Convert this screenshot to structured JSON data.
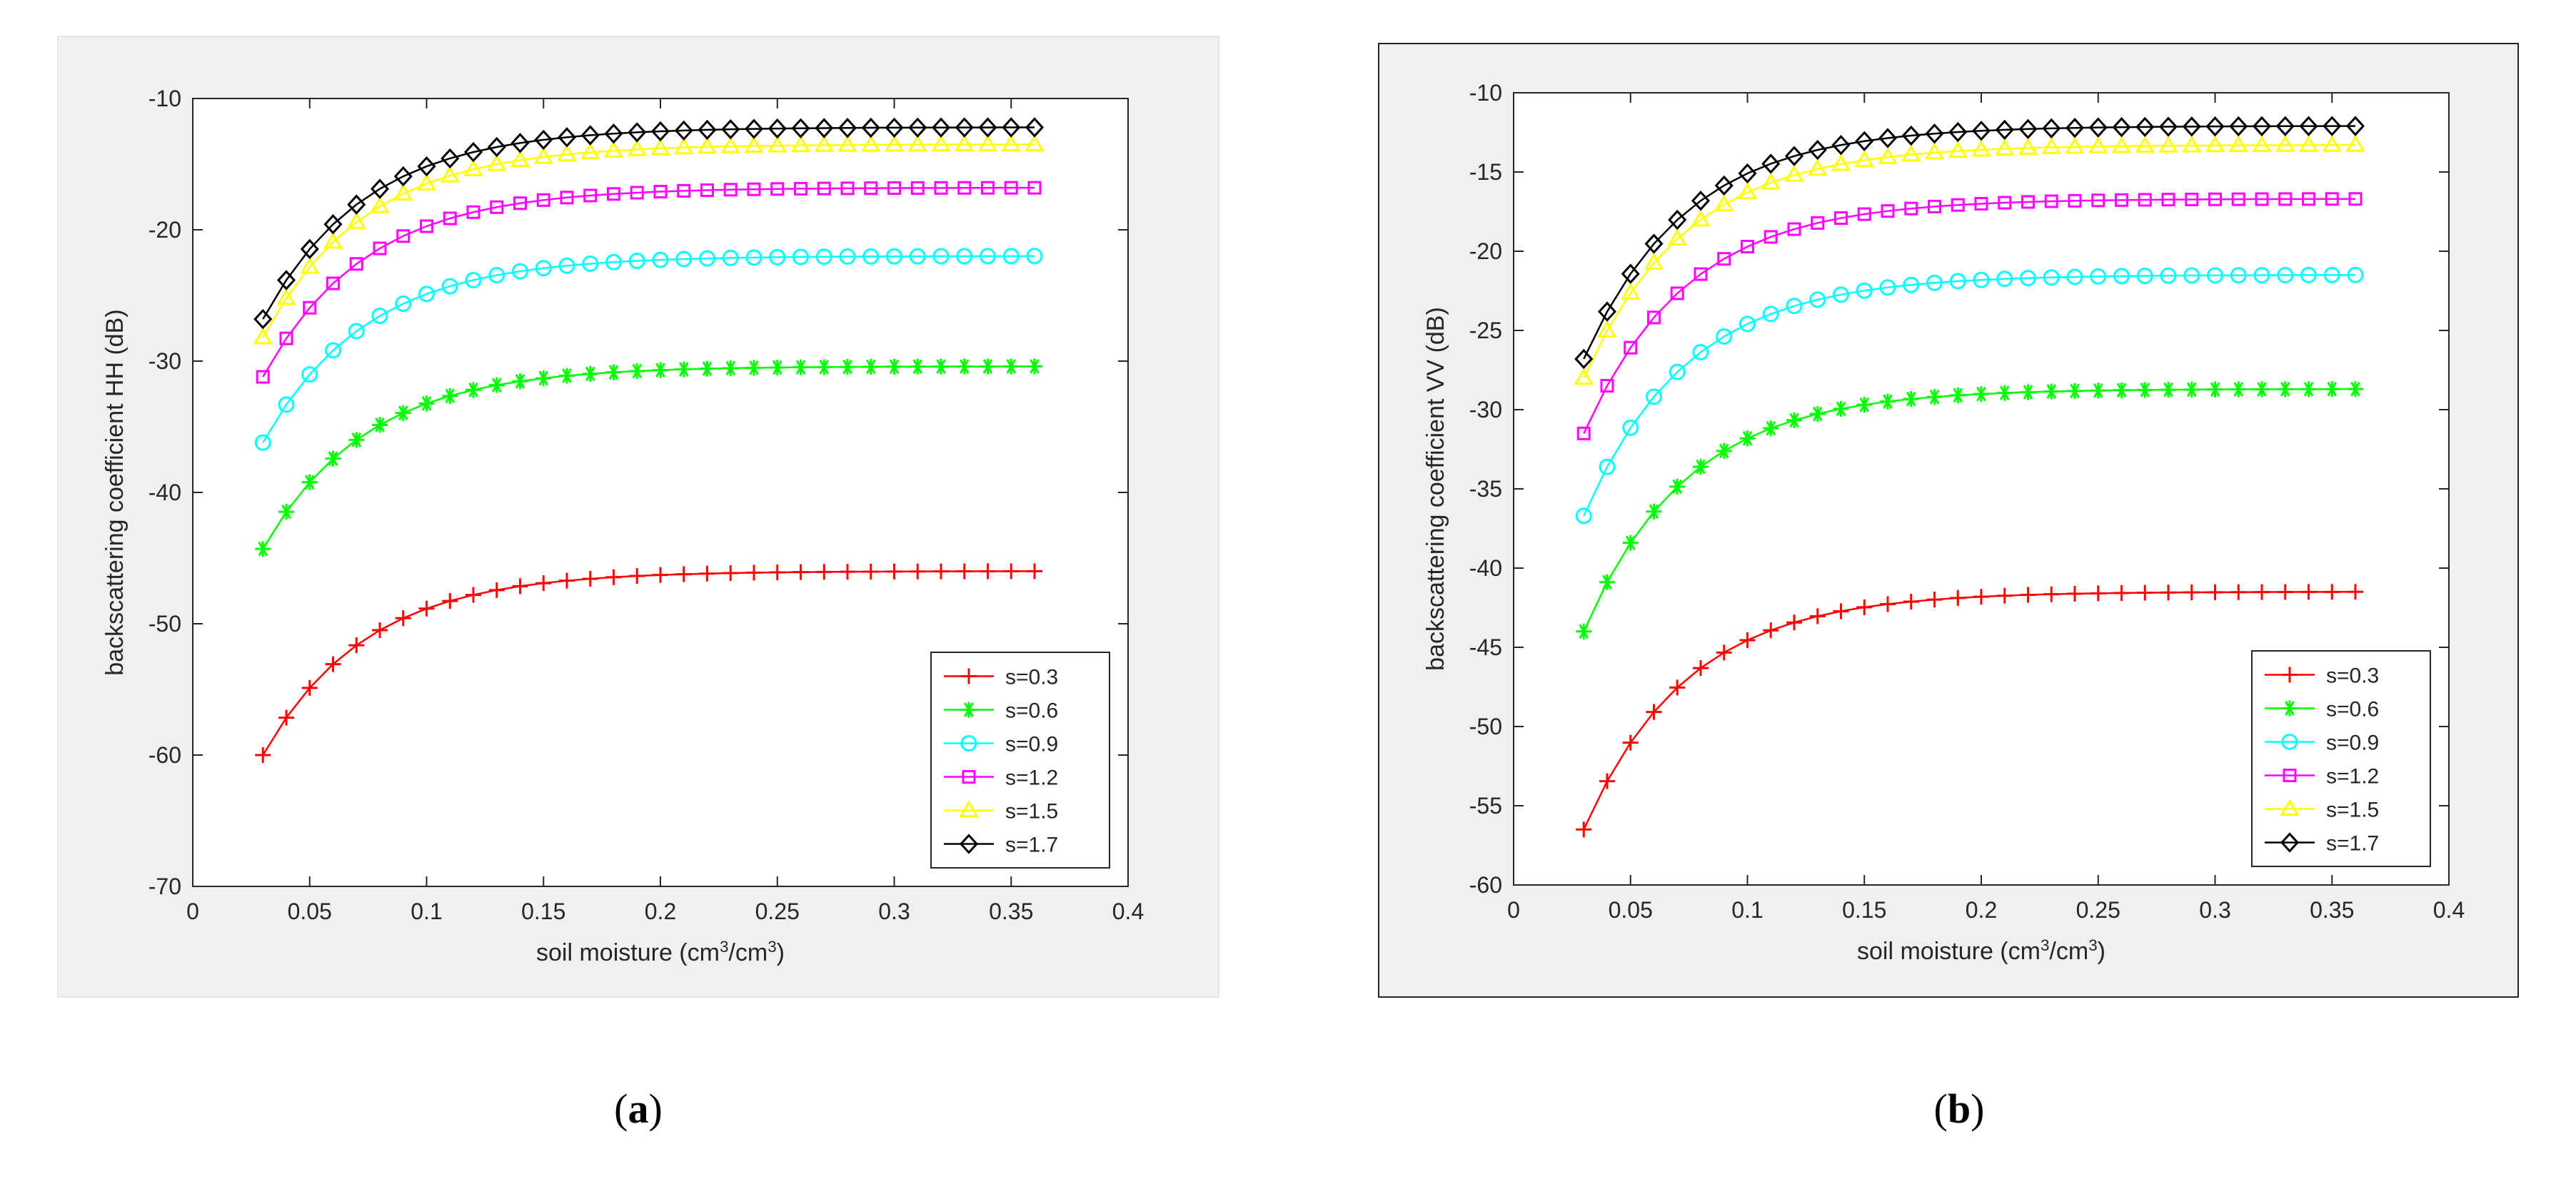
{
  "chart_data": [
    {
      "type": "line",
      "panel": "(a)",
      "panel_letter": "a",
      "xlabel": "soil moisture (cm",
      "xlabel_sup1": "3",
      "xlabel_mid": "/cm",
      "xlabel_sup2": "3",
      "xlabel_end": ")",
      "ylabel": "backscattering coefficient HH (dB)",
      "xlim": [
        0,
        0.4
      ],
      "ylim": [
        -70,
        -10
      ],
      "xticks": [
        0,
        0.05,
        0.1,
        0.15,
        0.2,
        0.25,
        0.3,
        0.35,
        0.4
      ],
      "xtick_labels": [
        "0",
        "0.05",
        "0.1",
        "0.15",
        "0.2",
        "0.25",
        "0.3",
        "0.35",
        "0.4"
      ],
      "yticks": [
        -70,
        -60,
        -50,
        -40,
        -30,
        -20,
        -10
      ],
      "ytick_labels": [
        "-70",
        "-60",
        "-50",
        "-40",
        "-30",
        "-20",
        "-10"
      ],
      "grid": false,
      "legend_position": "bottom-right",
      "x": {
        "start": 0.03,
        "end": 0.36,
        "step": 0.01
      },
      "series": [
        {
          "name": "s=0.3",
          "color": "#ff0000",
          "marker": "plus",
          "start": -60.0,
          "end": -46.0
        },
        {
          "name": "s=0.6",
          "color": "#00ff00",
          "marker": "asterisk",
          "start": -44.3,
          "end": -30.4
        },
        {
          "name": "s=0.9",
          "color": "#00ffff",
          "marker": "circle",
          "start": -36.2,
          "end": -22.0
        },
        {
          "name": "s=1.2",
          "color": "#ff00ff",
          "marker": "square",
          "start": -31.2,
          "end": -16.8
        },
        {
          "name": "s=1.5",
          "color": "#ffff00",
          "marker": "triangle",
          "start": -28.2,
          "end": -13.5
        },
        {
          "name": "s=1.7",
          "color": "#000000",
          "marker": "diamond",
          "start": -26.8,
          "end": -12.2
        }
      ]
    },
    {
      "type": "line",
      "panel": "(b)",
      "panel_letter": "b",
      "xlabel": "soil moisture (cm",
      "xlabel_sup1": "3",
      "xlabel_mid": "/cm",
      "xlabel_sup2": "3",
      "xlabel_end": ")",
      "ylabel": "backscattering coefficient VV (dB)",
      "xlim": [
        0,
        0.4
      ],
      "ylim": [
        -60,
        -10
      ],
      "xticks": [
        0,
        0.05,
        0.1,
        0.15,
        0.2,
        0.25,
        0.3,
        0.35,
        0.4
      ],
      "xtick_labels": [
        "0",
        "0.05",
        "0.1",
        "0.15",
        "0.2",
        "0.25",
        "0.3",
        "0.35",
        "0.4"
      ],
      "yticks": [
        -60,
        -55,
        -50,
        -45,
        -40,
        -35,
        -30,
        -25,
        -20,
        -15,
        -10
      ],
      "ytick_labels": [
        "-60",
        "-55",
        "-50",
        "-45",
        "-40",
        "-35",
        "-30",
        "-25",
        "-20",
        "-15",
        "-10"
      ],
      "grid": false,
      "legend_position": "bottom-right",
      "x": {
        "start": 0.03,
        "end": 0.36,
        "step": 0.01
      },
      "series": [
        {
          "name": "s=0.3",
          "color": "#ff0000",
          "marker": "plus",
          "start": -56.5,
          "end": -41.5
        },
        {
          "name": "s=0.6",
          "color": "#00ff00",
          "marker": "asterisk",
          "start": -44.0,
          "end": -28.7
        },
        {
          "name": "s=0.9",
          "color": "#00ffff",
          "marker": "circle",
          "start": -36.7,
          "end": -21.5
        },
        {
          "name": "s=1.2",
          "color": "#ff00ff",
          "marker": "square",
          "start": -31.5,
          "end": -16.7
        },
        {
          "name": "s=1.5",
          "color": "#ffff00",
          "marker": "triangle",
          "start": -28.0,
          "end": -13.3
        },
        {
          "name": "s=1.7",
          "color": "#000000",
          "marker": "diamond",
          "start": -26.8,
          "end": -12.1
        }
      ]
    }
  ],
  "captions": {
    "a": "a",
    "b": "b"
  }
}
